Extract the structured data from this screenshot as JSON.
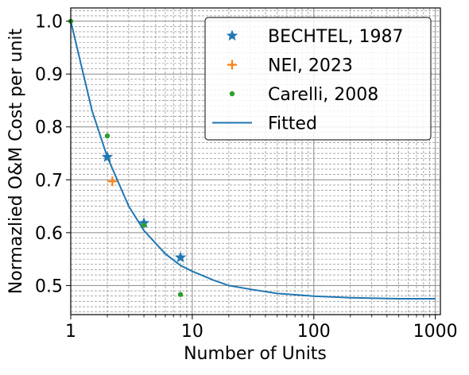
{
  "chart_data": {
    "type": "scatter",
    "title": "",
    "xlabel": "Number of Units",
    "ylabel": "Normazlied O&M Cost per unit",
    "x_scale": "log",
    "xlim": [
      1,
      1100
    ],
    "ylim": [
      0.445,
      1.025
    ],
    "x_ticks": [
      {
        "value": 1,
        "label": "1"
      },
      {
        "value": 10,
        "label": "10"
      },
      {
        "value": 100,
        "label": "100"
      },
      {
        "value": 1000,
        "label": "1000"
      }
    ],
    "y_ticks": [
      {
        "value": 0.5,
        "label": "0.5"
      },
      {
        "value": 0.6,
        "label": "0.6"
      },
      {
        "value": 0.7,
        "label": "0.7"
      },
      {
        "value": 0.8,
        "label": "0.8"
      },
      {
        "value": 0.9,
        "label": "0.9"
      },
      {
        "value": 1.0,
        "label": "1.0"
      }
    ],
    "grid": true,
    "legend_position": "top-right",
    "series": [
      {
        "name": "BECHTEL, 1987",
        "kind": "scatter",
        "marker": "star",
        "color": "#1f77b4",
        "points": [
          {
            "x": 2,
            "y": 0.743
          },
          {
            "x": 4,
            "y": 0.618
          },
          {
            "x": 8,
            "y": 0.553
          }
        ]
      },
      {
        "name": "NEI, 2023",
        "kind": "scatter",
        "marker": "plus",
        "color": "#ff7f0e",
        "points": [
          {
            "x": 2.2,
            "y": 0.697
          }
        ]
      },
      {
        "name": "Carelli, 2008",
        "kind": "scatter",
        "marker": "dot",
        "color": "#2ca02c",
        "points": [
          {
            "x": 1,
            "y": 1.0
          },
          {
            "x": 2,
            "y": 0.783
          },
          {
            "x": 4,
            "y": 0.614
          },
          {
            "x": 8,
            "y": 0.483
          }
        ]
      },
      {
        "name": "Fitted",
        "kind": "line",
        "marker": "line",
        "color": "#1f77b4",
        "points": [
          {
            "x": 1,
            "y": 1.0
          },
          {
            "x": 1.5,
            "y": 0.83
          },
          {
            "x": 2,
            "y": 0.743
          },
          {
            "x": 3,
            "y": 0.65
          },
          {
            "x": 4,
            "y": 0.604
          },
          {
            "x": 6,
            "y": 0.56
          },
          {
            "x": 8,
            "y": 0.538
          },
          {
            "x": 10,
            "y": 0.527
          },
          {
            "x": 15,
            "y": 0.51
          },
          {
            "x": 20,
            "y": 0.5
          },
          {
            "x": 30,
            "y": 0.493
          },
          {
            "x": 50,
            "y": 0.485
          },
          {
            "x": 100,
            "y": 0.48
          },
          {
            "x": 200,
            "y": 0.477
          },
          {
            "x": 500,
            "y": 0.475
          },
          {
            "x": 1000,
            "y": 0.475
          }
        ]
      }
    ]
  }
}
